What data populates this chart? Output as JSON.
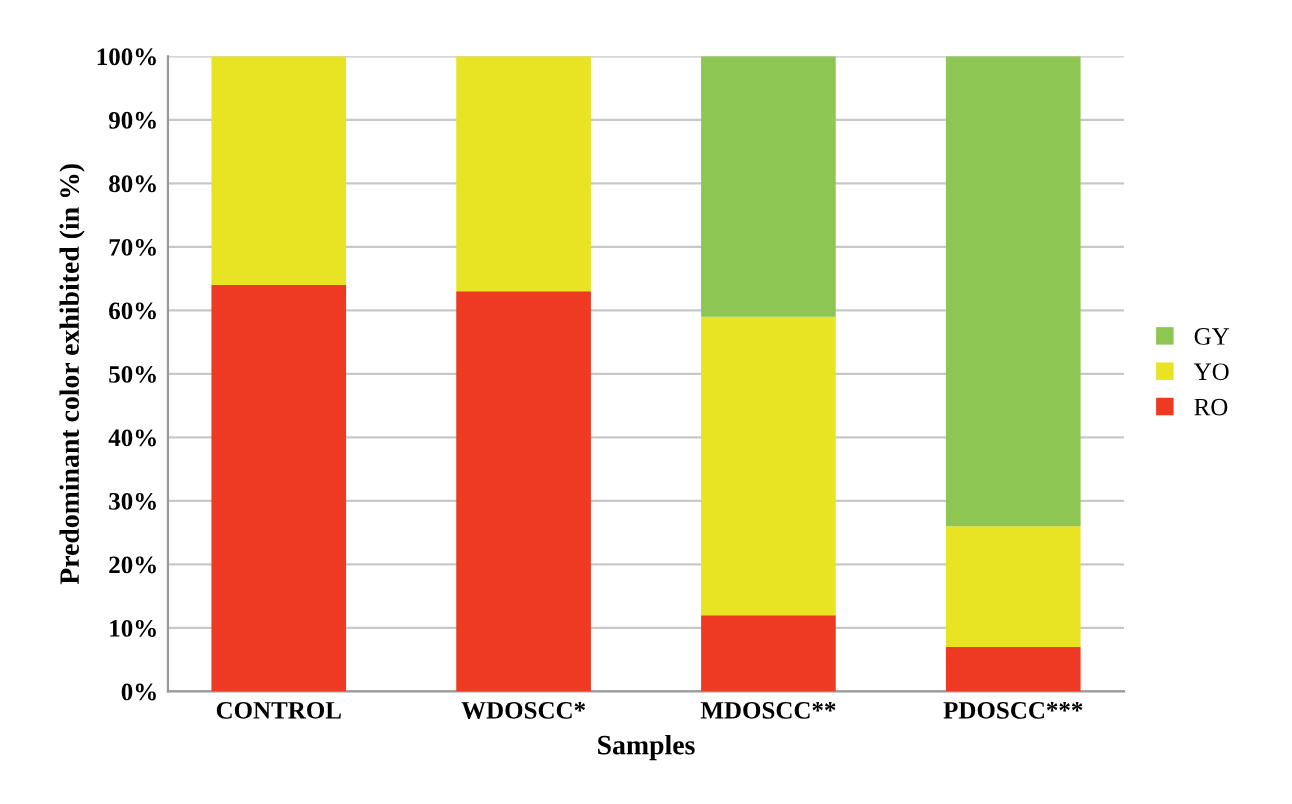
{
  "chart_data": {
    "type": "bar",
    "stacked": true,
    "xlabel": "Samples",
    "ylabel": "Predominant color exhibited (in %)",
    "categories": [
      "CONTROL",
      "WDOSCC*",
      "MDOSCC**",
      "PDOSCC***"
    ],
    "series": [
      {
        "name": "RO",
        "color": "#ee3a22",
        "values": [
          64,
          63,
          12,
          7
        ]
      },
      {
        "name": "YO",
        "color": "#e8e424",
        "values": [
          36,
          37,
          47,
          19
        ]
      },
      {
        "name": "GY",
        "color": "#8dc653",
        "values": [
          0,
          0,
          41,
          74
        ]
      }
    ],
    "ylim": [
      0,
      100
    ],
    "yticks": [
      {
        "value": 0,
        "label": "0%"
      },
      {
        "value": 10,
        "label": "10%"
      },
      {
        "value": 20,
        "label": "20%"
      },
      {
        "value": 30,
        "label": "30%"
      },
      {
        "value": 40,
        "label": "40%"
      },
      {
        "value": 50,
        "label": "50%"
      },
      {
        "value": 60,
        "label": "60%"
      },
      {
        "value": 70,
        "label": "70%"
      },
      {
        "value": 80,
        "label": "80%"
      },
      {
        "value": 90,
        "label": "90%"
      },
      {
        "value": 100,
        "label": "100%"
      }
    ],
    "grid": "y",
    "legend": "right"
  }
}
